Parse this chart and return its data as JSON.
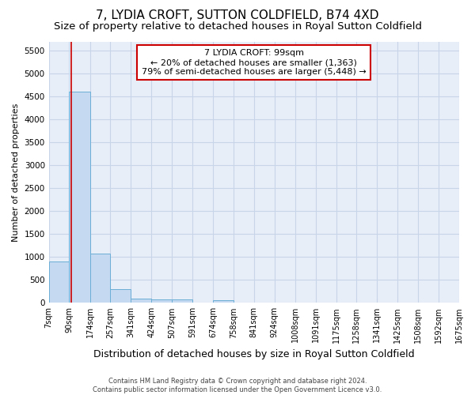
{
  "title": "7, LYDIA CROFT, SUTTON COLDFIELD, B74 4XD",
  "subtitle": "Size of property relative to detached houses in Royal Sutton Coldfield",
  "xlabel": "Distribution of detached houses by size in Royal Sutton Coldfield",
  "ylabel": "Number of detached properties",
  "footer_line1": "Contains HM Land Registry data © Crown copyright and database right 2024.",
  "footer_line2": "Contains public sector information licensed under the Open Government Licence v3.0.",
  "bar_edges": [
    7,
    90,
    174,
    257,
    341,
    424,
    507,
    591,
    674,
    758,
    841,
    924,
    1008,
    1091,
    1175,
    1258,
    1341,
    1425,
    1508,
    1592,
    1675
  ],
  "bar_heights": [
    900,
    4600,
    1075,
    290,
    90,
    70,
    70,
    0,
    60,
    0,
    0,
    0,
    0,
    0,
    0,
    0,
    0,
    0,
    0,
    0
  ],
  "bar_color": "#c5d9f0",
  "bar_edge_color": "#6baed6",
  "property_size": 99,
  "property_line_color": "#cc0000",
  "annotation_text": "7 LYDIA CROFT: 99sqm\n← 20% of detached houses are smaller (1,363)\n79% of semi-detached houses are larger (5,448) →",
  "annotation_box_color": "#cc0000",
  "ylim": [
    0,
    5700
  ],
  "yticks": [
    0,
    500,
    1000,
    1500,
    2000,
    2500,
    3000,
    3500,
    4000,
    4500,
    5000,
    5500
  ],
  "tick_labels": [
    "7sqm",
    "90sqm",
    "174sqm",
    "257sqm",
    "341sqm",
    "424sqm",
    "507sqm",
    "591sqm",
    "674sqm",
    "758sqm",
    "841sqm",
    "924sqm",
    "1008sqm",
    "1091sqm",
    "1175sqm",
    "1258sqm",
    "1341sqm",
    "1425sqm",
    "1508sqm",
    "1592sqm",
    "1675sqm"
  ],
  "background_color": "#ffffff",
  "plot_bg_color": "#e8eef8",
  "grid_color": "#c8d4e8",
  "title_fontsize": 11,
  "subtitle_fontsize": 9.5,
  "xlabel_fontsize": 9,
  "ylabel_fontsize": 8,
  "tick_fontsize": 7,
  "annotation_fontsize": 8,
  "footer_fontsize": 6
}
